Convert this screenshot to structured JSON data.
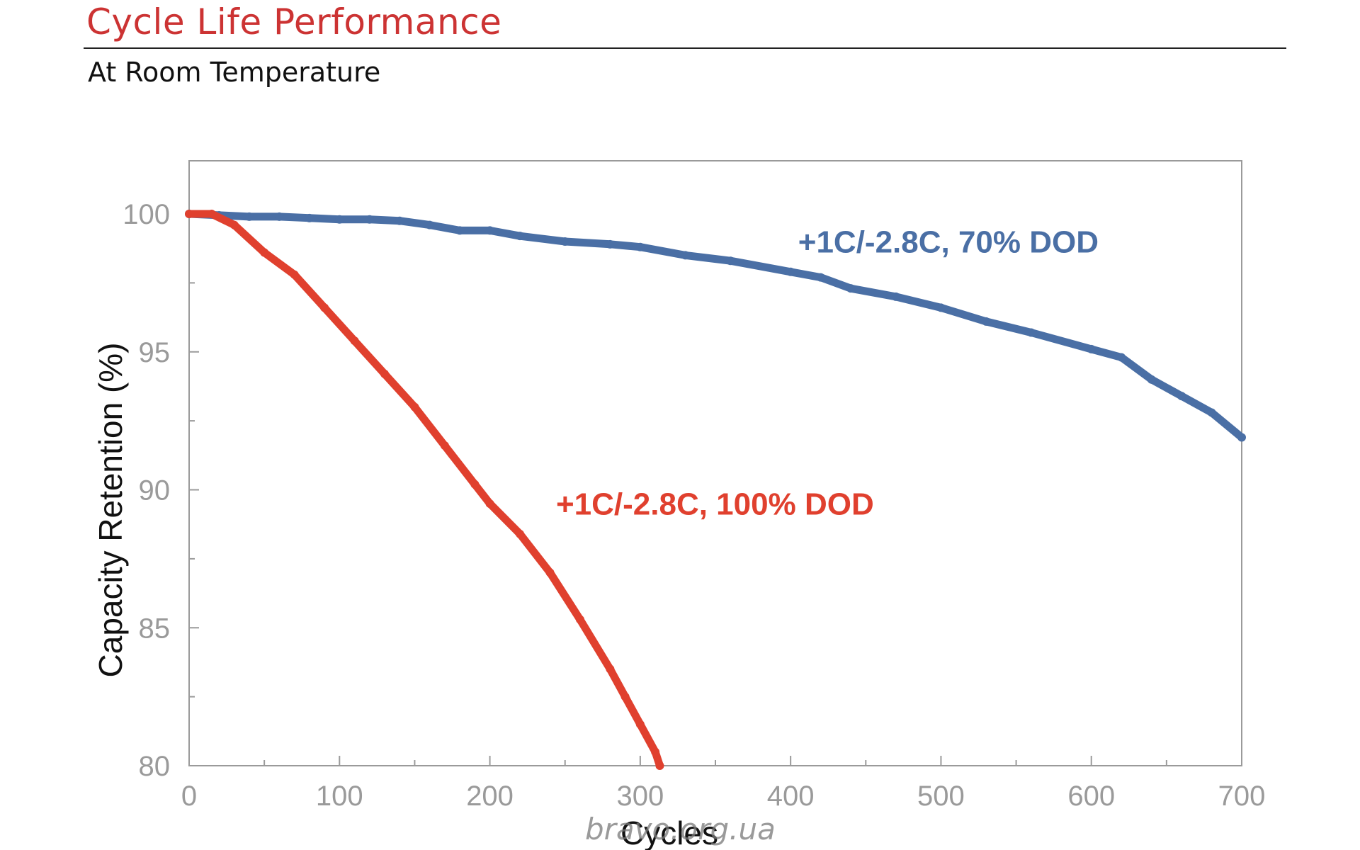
{
  "header": {
    "title": "Cycle Life Performance",
    "subtitle": "At Room Temperature"
  },
  "watermark": "bravo.org.ua",
  "chart_data": {
    "type": "line",
    "title": "Cycle Life Performance",
    "subtitle": "At Room Temperature",
    "xlabel": "Cycles",
    "ylabel": "Capacity Retention (%)",
    "xlim": [
      0,
      700
    ],
    "ylim": [
      80,
      102
    ],
    "x_ticks": [
      0,
      100,
      200,
      300,
      400,
      500,
      600,
      700
    ],
    "y_ticks": [
      80,
      85,
      90,
      95,
      100
    ],
    "x_tick_labels": [
      "0",
      "100",
      "200",
      "300",
      "400",
      "500",
      "600",
      "700"
    ],
    "y_tick_labels": [
      "80",
      "85",
      "90",
      "95",
      "100"
    ],
    "grid": false,
    "series": [
      {
        "name": "+1C/-2.8C, 70% DOD",
        "color": "#4a6fa5",
        "x": [
          0,
          20,
          40,
          60,
          80,
          100,
          120,
          140,
          160,
          180,
          200,
          220,
          250,
          280,
          300,
          330,
          360,
          400,
          420,
          440,
          470,
          500,
          530,
          560,
          600,
          620,
          640,
          660,
          680,
          700
        ],
        "y": [
          100.0,
          99.95,
          99.9,
          99.9,
          99.85,
          99.8,
          99.8,
          99.75,
          99.6,
          99.4,
          99.4,
          99.2,
          99.0,
          98.9,
          98.8,
          98.5,
          98.3,
          97.9,
          97.7,
          97.3,
          97.0,
          96.6,
          96.1,
          95.7,
          95.1,
          94.8,
          94.0,
          93.4,
          92.8,
          91.9
        ]
      },
      {
        "name": "+1C/-2.8C, 100% DOD",
        "color": "#e0402e",
        "x": [
          0,
          15,
          30,
          50,
          70,
          90,
          110,
          130,
          150,
          170,
          190,
          200,
          220,
          240,
          260,
          280,
          290,
          300,
          310,
          313
        ],
        "y": [
          100.0,
          100.0,
          99.6,
          98.6,
          97.8,
          96.6,
          95.4,
          94.2,
          93.0,
          91.6,
          90.2,
          89.5,
          88.4,
          87.0,
          85.3,
          83.5,
          82.5,
          81.5,
          80.5,
          80.0
        ]
      }
    ],
    "annotations": [
      {
        "text": "+1C/-2.8C, 70% DOD",
        "color": "#4a6fa5",
        "x": 405,
        "y": 98.6
      },
      {
        "text": "+1C/-2.8C, 100% DOD",
        "color": "#e0402e",
        "x": 244,
        "y": 89.1
      }
    ]
  }
}
